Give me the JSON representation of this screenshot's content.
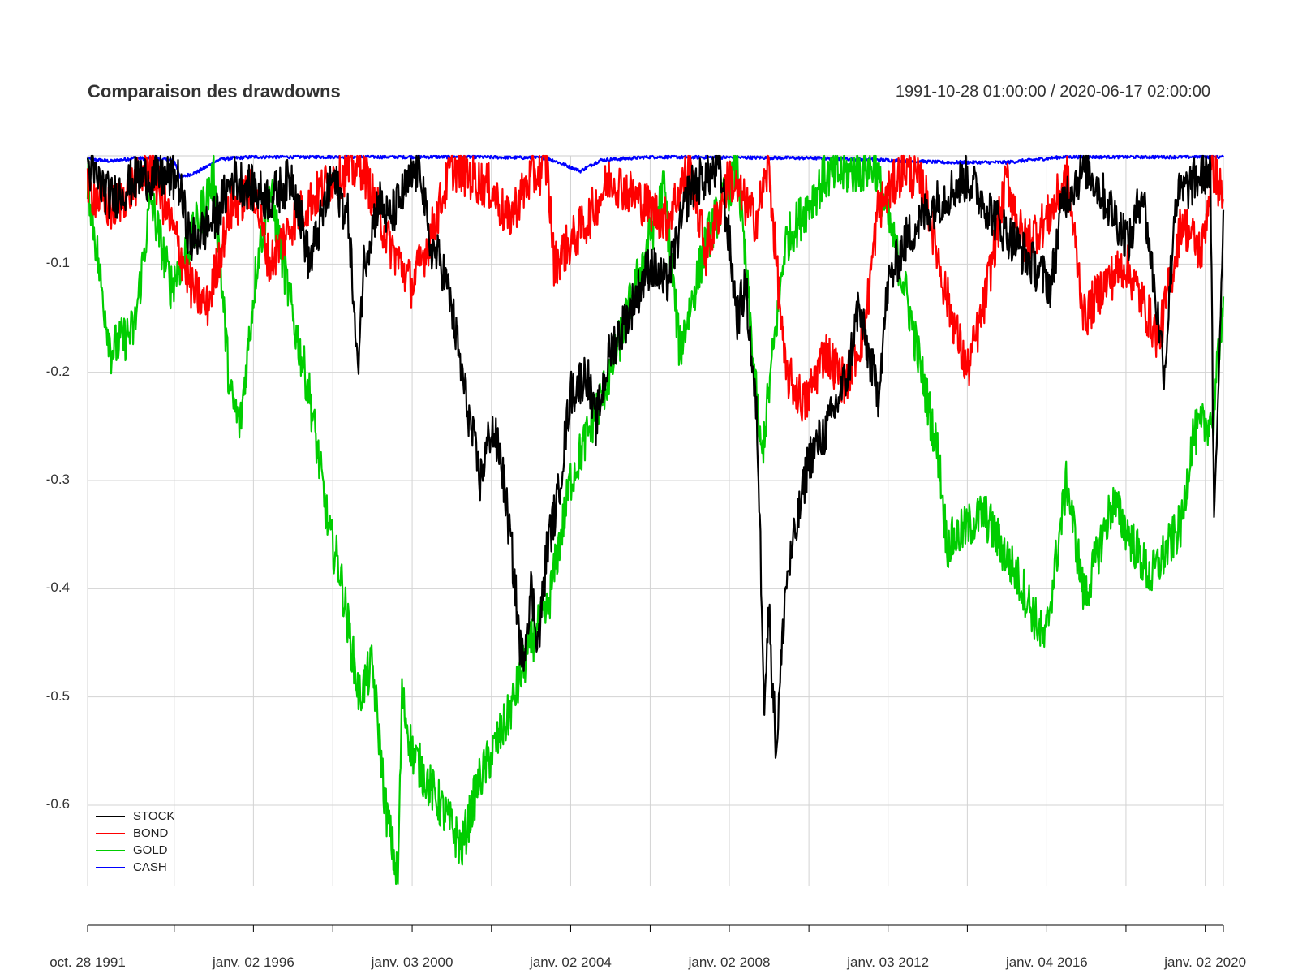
{
  "chart_data": {
    "type": "line",
    "title": "Comparaison des drawdowns",
    "date_range": "1991-10-28 01:00:00 / 2020-06-17 02:00:00",
    "ylim": [
      -0.675,
      0.0
    ],
    "y_ticks": [
      -0.1,
      -0.2,
      -0.3,
      -0.4,
      -0.5,
      -0.6
    ],
    "y_tick_labels": [
      "-0.1",
      "-0.2",
      "-0.3",
      "-0.4",
      "-0.5",
      "-0.6"
    ],
    "x_ticks": [
      {
        "label": "oct. 28 1991",
        "date": "1991-10-28"
      },
      {
        "label": "janv. 02 1996",
        "date": "1996-01-02"
      },
      {
        "label": "janv. 03 2000",
        "date": "2000-01-03"
      },
      {
        "label": "janv. 02 2004",
        "date": "2004-01-02"
      },
      {
        "label": "janv. 02 2008",
        "date": "2008-01-02"
      },
      {
        "label": "janv. 03 2012",
        "date": "2012-01-03"
      },
      {
        "label": "janv. 04 2016",
        "date": "2016-01-04"
      },
      {
        "label": "janv. 02 2020",
        "date": "2020-01-02"
      }
    ],
    "minor_x_ticks": [
      "1994-01-03",
      "1998-01-02",
      "2002-01-02",
      "2006-01-03",
      "2010-01-04",
      "2014-01-02",
      "2018-01-02"
    ],
    "xlim": [
      "1991-10-28",
      "2020-06-17"
    ],
    "grid": true,
    "legend_position": "bottom-left",
    "series": [
      {
        "name": "STOCK",
        "color": "#000000",
        "points": [
          [
            "1991-10-28",
            -0.01
          ],
          [
            "1992-06-01",
            -0.04
          ],
          [
            "1993-02-01",
            -0.02
          ],
          [
            "1994-02-01",
            -0.02
          ],
          [
            "1994-06-01",
            -0.08
          ],
          [
            "1995-01-01",
            -0.06
          ],
          [
            "1995-07-01",
            -0.02
          ],
          [
            "1996-06-01",
            -0.04
          ],
          [
            "1997-01-01",
            -0.02
          ],
          [
            "1997-06-01",
            -0.1
          ],
          [
            "1998-01-01",
            -0.02
          ],
          [
            "1998-06-01",
            -0.06
          ],
          [
            "1998-08-15",
            -0.2
          ],
          [
            "1998-10-15",
            -0.1
          ],
          [
            "1999-03-01",
            -0.04
          ],
          [
            "1999-06-01",
            -0.06
          ],
          [
            "2000-01-01",
            -0.02
          ],
          [
            "2000-03-24",
            -0.01
          ],
          [
            "2000-06-01",
            -0.08
          ],
          [
            "2000-10-01",
            -0.1
          ],
          [
            "2001-01-01",
            -0.14
          ],
          [
            "2001-04-01",
            -0.2
          ],
          [
            "2001-09-20",
            -0.3
          ],
          [
            "2002-01-01",
            -0.25
          ],
          [
            "2002-04-01",
            -0.28
          ],
          [
            "2002-07-23",
            -0.38
          ],
          [
            "2002-10-09",
            -0.47
          ],
          [
            "2003-01-01",
            -0.4
          ],
          [
            "2003-03-11",
            -0.45
          ],
          [
            "2003-06-01",
            -0.36
          ],
          [
            "2003-09-01",
            -0.32
          ],
          [
            "2004-01-01",
            -0.22
          ],
          [
            "2004-06-01",
            -0.2
          ],
          [
            "2004-08-15",
            -0.25
          ],
          [
            "2005-01-01",
            -0.18
          ],
          [
            "2005-06-01",
            -0.15
          ],
          [
            "2006-01-01",
            -0.1
          ],
          [
            "2006-06-01",
            -0.12
          ],
          [
            "2007-01-01",
            -0.03
          ],
          [
            "2007-10-09",
            -0.01
          ],
          [
            "2008-01-01",
            -0.08
          ],
          [
            "2008-03-15",
            -0.15
          ],
          [
            "2008-06-01",
            -0.12
          ],
          [
            "2008-09-15",
            -0.25
          ],
          [
            "2008-11-20",
            -0.5
          ],
          [
            "2009-01-01",
            -0.42
          ],
          [
            "2009-03-09",
            -0.55
          ],
          [
            "2009-06-01",
            -0.4
          ],
          [
            "2009-09-01",
            -0.35
          ],
          [
            "2010-01-01",
            -0.28
          ],
          [
            "2010-07-01",
            -0.25
          ],
          [
            "2011-01-01",
            -0.2
          ],
          [
            "2011-04-01",
            -0.14
          ],
          [
            "2011-08-15",
            -0.2
          ],
          [
            "2011-10-03",
            -0.22
          ],
          [
            "2012-01-01",
            -0.12
          ],
          [
            "2012-06-01",
            -0.08
          ],
          [
            "2013-01-01",
            -0.05
          ],
          [
            "2014-01-01",
            -0.02
          ],
          [
            "2014-10-01",
            -0.06
          ],
          [
            "2015-08-25",
            -0.1
          ],
          [
            "2016-02-11",
            -0.12
          ],
          [
            "2016-06-01",
            -0.04
          ],
          [
            "2017-01-01",
            -0.01
          ],
          [
            "2018-02-08",
            -0.08
          ],
          [
            "2018-06-01",
            -0.03
          ],
          [
            "2018-12-24",
            -0.2
          ],
          [
            "2019-04-01",
            -0.04
          ],
          [
            "2020-02-19",
            -0.01
          ],
          [
            "2020-03-23",
            -0.35
          ],
          [
            "2020-06-17",
            -0.05
          ]
        ]
      },
      {
        "name": "BOND",
        "color": "#ff0000",
        "points": [
          [
            "1991-10-28",
            -0.03
          ],
          [
            "1992-06-01",
            -0.05
          ],
          [
            "1993-06-01",
            -0.01
          ],
          [
            "1994-02-01",
            -0.08
          ],
          [
            "1994-06-01",
            -0.12
          ],
          [
            "1994-11-01",
            -0.14
          ],
          [
            "1995-06-01",
            -0.05
          ],
          [
            "1996-01-01",
            -0.03
          ],
          [
            "1996-06-01",
            -0.1
          ],
          [
            "1997-01-01",
            -0.06
          ],
          [
            "1998-01-01",
            -0.02
          ],
          [
            "1998-10-01",
            -0.01
          ],
          [
            "1999-06-01",
            -0.08
          ],
          [
            "2000-01-01",
            -0.12
          ],
          [
            "2000-06-01",
            -0.08
          ],
          [
            "2001-01-01",
            -0.01
          ],
          [
            "2002-01-01",
            -0.03
          ],
          [
            "2002-06-01",
            -0.06
          ],
          [
            "2003-01-01",
            -0.02
          ],
          [
            "2003-06-01",
            -0.01
          ],
          [
            "2003-08-01",
            -0.1
          ],
          [
            "2004-06-01",
            -0.06
          ],
          [
            "2005-01-01",
            -0.02
          ],
          [
            "2006-06-01",
            -0.06
          ],
          [
            "2007-01-01",
            -0.01
          ],
          [
            "2007-06-01",
            -0.09
          ],
          [
            "2008-01-01",
            -0.02
          ],
          [
            "2008-09-01",
            -0.06
          ],
          [
            "2008-12-30",
            -0.01
          ],
          [
            "2009-06-01",
            -0.2
          ],
          [
            "2009-12-01",
            -0.23
          ],
          [
            "2010-06-01",
            -0.18
          ],
          [
            "2010-12-01",
            -0.21
          ],
          [
            "2011-06-01",
            -0.16
          ],
          [
            "2011-10-01",
            -0.05
          ],
          [
            "2012-06-01",
            -0.01
          ],
          [
            "2012-12-01",
            -0.03
          ],
          [
            "2013-06-01",
            -0.12
          ],
          [
            "2013-12-31",
            -0.2
          ],
          [
            "2014-06-01",
            -0.14
          ],
          [
            "2015-01-01",
            -0.02
          ],
          [
            "2015-06-01",
            -0.08
          ],
          [
            "2016-01-01",
            -0.06
          ],
          [
            "2016-07-08",
            -0.02
          ],
          [
            "2016-12-15",
            -0.15
          ],
          [
            "2017-06-01",
            -0.12
          ],
          [
            "2018-01-01",
            -0.1
          ],
          [
            "2018-10-31",
            -0.17
          ],
          [
            "2019-06-01",
            -0.06
          ],
          [
            "2019-12-01",
            -0.09
          ],
          [
            "2020-03-09",
            -0.01
          ],
          [
            "2020-06-17",
            -0.04
          ]
        ]
      },
      {
        "name": "GOLD",
        "color": "#00cd00",
        "points": [
          [
            "1991-10-28",
            -0.02
          ],
          [
            "1992-03-01",
            -0.12
          ],
          [
            "1992-06-01",
            -0.18
          ],
          [
            "1993-01-01",
            -0.16
          ],
          [
            "1993-06-01",
            -0.04
          ],
          [
            "1993-12-01",
            -0.12
          ],
          [
            "1994-06-01",
            -0.08
          ],
          [
            "1995-01-01",
            -0.02
          ],
          [
            "1995-06-01",
            -0.22
          ],
          [
            "1995-09-01",
            -0.25
          ],
          [
            "1996-02-01",
            -0.1
          ],
          [
            "1996-06-01",
            -0.03
          ],
          [
            "1997-01-01",
            -0.15
          ],
          [
            "1997-06-01",
            -0.22
          ],
          [
            "1997-12-01",
            -0.35
          ],
          [
            "1998-03-01",
            -0.38
          ],
          [
            "1998-09-01",
            -0.5
          ],
          [
            "1999-01-01",
            -0.47
          ],
          [
            "1999-05-01",
            -0.6
          ],
          [
            "1999-08-25",
            -0.67
          ],
          [
            "1999-10-01",
            -0.5
          ],
          [
            "2000-01-01",
            -0.55
          ],
          [
            "2000-06-01",
            -0.58
          ],
          [
            "2001-01-01",
            -0.62
          ],
          [
            "2001-04-02",
            -0.64
          ],
          [
            "2001-09-01",
            -0.58
          ],
          [
            "2002-06-01",
            -0.52
          ],
          [
            "2003-01-01",
            -0.45
          ],
          [
            "2003-06-01",
            -0.42
          ],
          [
            "2004-01-01",
            -0.3
          ],
          [
            "2005-01-01",
            -0.2
          ],
          [
            "2006-05-12",
            -0.03
          ],
          [
            "2006-10-01",
            -0.18
          ],
          [
            "2007-06-01",
            -0.08
          ],
          [
            "2008-03-17",
            -0.01
          ],
          [
            "2008-10-24",
            -0.28
          ],
          [
            "2009-06-01",
            -0.08
          ],
          [
            "2010-06-01",
            -0.02
          ],
          [
            "2011-09-06",
            -0.01
          ],
          [
            "2012-06-01",
            -0.12
          ],
          [
            "2013-04-15",
            -0.28
          ],
          [
            "2013-06-28",
            -0.36
          ],
          [
            "2014-06-01",
            -0.33
          ],
          [
            "2015-06-01",
            -0.4
          ],
          [
            "2015-12-17",
            -0.45
          ],
          [
            "2016-07-06",
            -0.3
          ],
          [
            "2016-12-15",
            -0.41
          ],
          [
            "2017-09-01",
            -0.32
          ],
          [
            "2018-08-16",
            -0.39
          ],
          [
            "2019-06-01",
            -0.34
          ],
          [
            "2019-09-04",
            -0.26
          ],
          [
            "2020-03-19",
            -0.24
          ],
          [
            "2020-06-17",
            -0.13
          ]
        ]
      },
      {
        "name": "CASH",
        "color": "#0000ff",
        "points": [
          [
            "1991-10-28",
            -0.003
          ],
          [
            "1992-06-01",
            -0.005
          ],
          [
            "1993-01-01",
            -0.002
          ],
          [
            "1994-01-01",
            -0.004
          ],
          [
            "1994-03-01",
            -0.02
          ],
          [
            "1994-08-01",
            -0.015
          ],
          [
            "1995-03-01",
            -0.003
          ],
          [
            "1996-01-01",
            -0.001
          ],
          [
            "2000-01-01",
            -0.001
          ],
          [
            "2001-06-01",
            -0.001
          ],
          [
            "2003-06-01",
            -0.002
          ],
          [
            "2004-04-01",
            -0.014
          ],
          [
            "2004-10-01",
            -0.004
          ],
          [
            "2006-01-01",
            -0.001
          ],
          [
            "2010-01-01",
            -0.002
          ],
          [
            "2012-01-01",
            -0.004
          ],
          [
            "2013-06-01",
            -0.006
          ],
          [
            "2015-01-01",
            -0.006
          ],
          [
            "2016-06-01",
            -0.001
          ],
          [
            "2020-06-17",
            -0.001
          ]
        ]
      }
    ]
  }
}
